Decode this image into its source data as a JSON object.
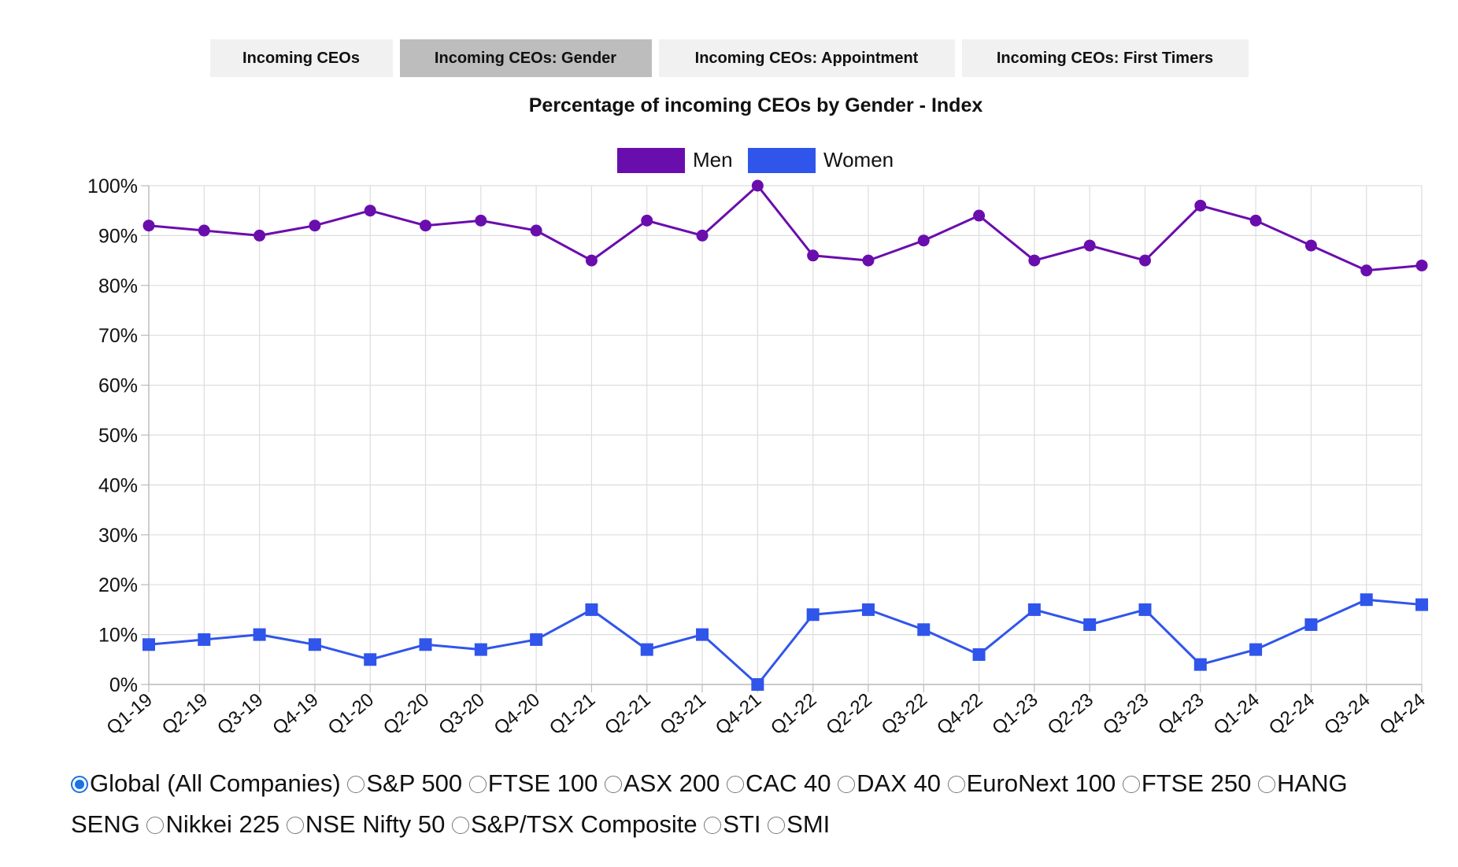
{
  "tabs": [
    {
      "label": "Incoming CEOs",
      "active": false
    },
    {
      "label": "Incoming CEOs: Gender",
      "active": true
    },
    {
      "label": "Incoming CEOs: Appointment",
      "active": false
    },
    {
      "label": "Incoming CEOs: First Timers",
      "active": false
    }
  ],
  "chart_data": {
    "type": "line",
    "title": "Percentage of incoming CEOs by Gender - Index",
    "xlabel": "",
    "ylabel": "",
    "ylim": [
      0,
      100
    ],
    "yticks": [
      0,
      10,
      20,
      30,
      40,
      50,
      60,
      70,
      80,
      90,
      100
    ],
    "ytick_suffix": "%",
    "grid": true,
    "legend": "top-center",
    "categories": [
      "Q1-19",
      "Q2-19",
      "Q3-19",
      "Q4-19",
      "Q1-20",
      "Q2-20",
      "Q3-20",
      "Q4-20",
      "Q1-21",
      "Q2-21",
      "Q3-21",
      "Q4-21",
      "Q1-22",
      "Q2-22",
      "Q3-22",
      "Q4-22",
      "Q1-23",
      "Q2-23",
      "Q3-23",
      "Q4-23",
      "Q1-24",
      "Q2-24",
      "Q3-24",
      "Q4-24"
    ],
    "series": [
      {
        "name": "Men",
        "color": "#6a0dad",
        "marker": "circle",
        "values": [
          92,
          91,
          90,
          92,
          95,
          92,
          93,
          91,
          85,
          93,
          90,
          100,
          86,
          85,
          89,
          94,
          85,
          88,
          85,
          96,
          93,
          88,
          83,
          84
        ]
      },
      {
        "name": "Women",
        "color": "#2f55ea",
        "marker": "square",
        "values": [
          8,
          9,
          10,
          8,
          5,
          8,
          7,
          9,
          15,
          7,
          10,
          0,
          14,
          15,
          11,
          6,
          15,
          12,
          15,
          4,
          7,
          12,
          17,
          16
        ]
      }
    ]
  },
  "index_options": [
    {
      "label": "Global (All Companies)",
      "checked": true
    },
    {
      "label": "S&P 500",
      "checked": false
    },
    {
      "label": "FTSE 100",
      "checked": false
    },
    {
      "label": "ASX 200",
      "checked": false
    },
    {
      "label": "CAC 40",
      "checked": false
    },
    {
      "label": "DAX 40",
      "checked": false
    },
    {
      "label": "EuroNext 100",
      "checked": false
    },
    {
      "label": "FTSE 250",
      "checked": false
    },
    {
      "label": "HANG SENG",
      "checked": false
    },
    {
      "label": "Nikkei 225",
      "checked": false
    },
    {
      "label": "NSE Nifty 50",
      "checked": false
    },
    {
      "label": "S&P/TSX Composite",
      "checked": false
    },
    {
      "label": "STI",
      "checked": false
    },
    {
      "label": "SMI",
      "checked": false
    }
  ]
}
